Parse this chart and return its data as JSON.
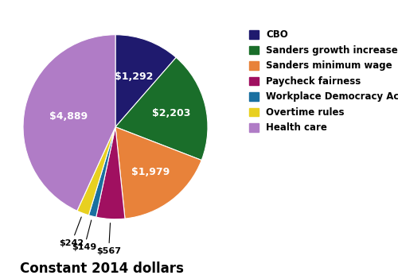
{
  "labels": [
    "CBO",
    "Sanders growth increase",
    "Sanders minimum wage",
    "Paycheck fairness",
    "Workplace Democracy Act",
    "Overtime rules",
    "Health care"
  ],
  "values": [
    1292,
    2203,
    1979,
    567,
    149,
    242,
    4889
  ],
  "colors": [
    "#1f1a6e",
    "#1a6e2a",
    "#e8823a",
    "#a01060",
    "#1a70a0",
    "#e8d020",
    "#b07cc6"
  ],
  "labels_dollar": [
    "$1,292",
    "$2,203",
    "$1,979",
    "$567",
    "$149",
    "$242",
    "$4,889"
  ],
  "subtitle": "Constant 2014 dollars",
  "subtitle_fontsize": 12,
  "legend_fontsize": 8.5,
  "label_fontsize": 9
}
